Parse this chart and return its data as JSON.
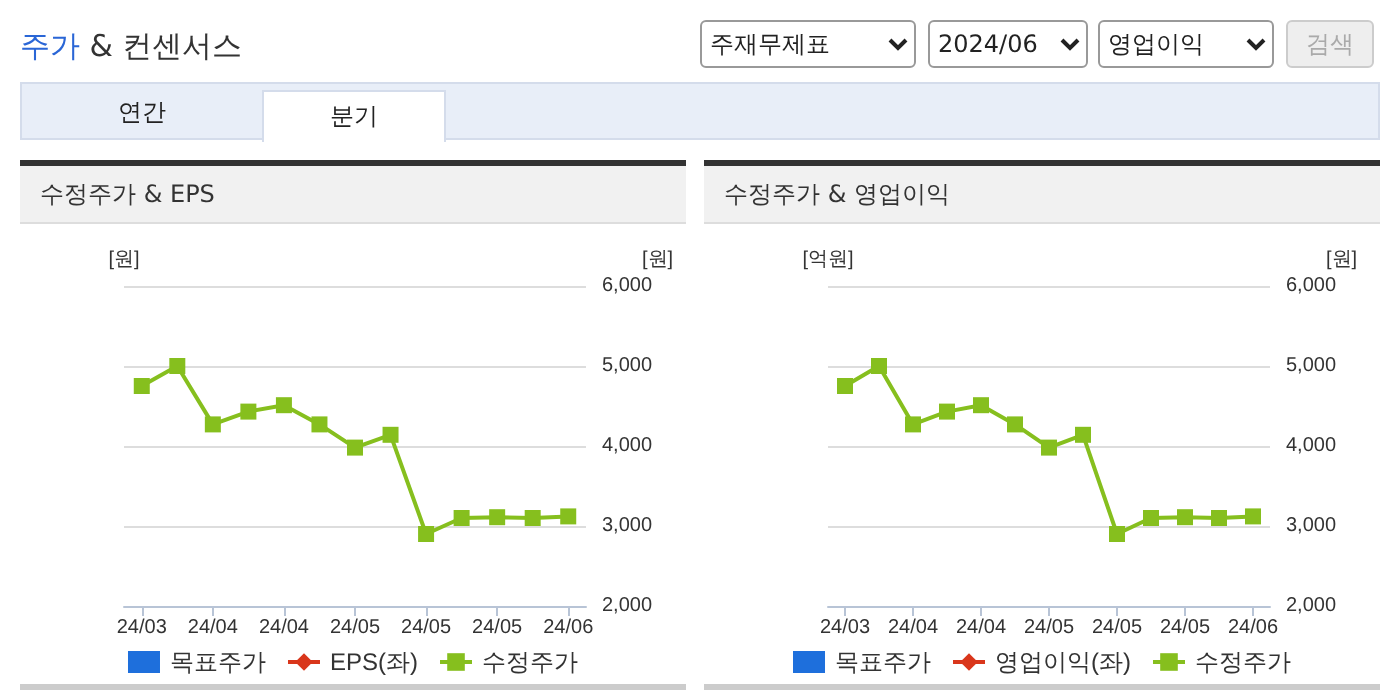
{
  "chart_data": [
    {
      "type": "other",
      "title": "주가 & 컨센서스",
      "annotations": [
        "주재무제표",
        "2024/06",
        "영업이익",
        "검색",
        "연간",
        "분기"
      ]
    },
    {
      "type": "line",
      "title": "수정주가 & EPS",
      "ylabel": "[원]",
      "y2label": "[원]",
      "categories": [
        "24/03",
        null,
        "24/04",
        null,
        "24/04",
        null,
        "24/05",
        null,
        "24/05",
        null,
        "24/05",
        null,
        "24/06"
      ],
      "series": [
        {
          "name": "목표주가",
          "type": "bar",
          "color": "#1e6fdc",
          "axis": "y2",
          "values": [
            null,
            null,
            null,
            null,
            null,
            null,
            null,
            null,
            null,
            null,
            null,
            null,
            null
          ]
        },
        {
          "name": "EPS(좌)",
          "type": "line",
          "marker": "diamond",
          "color": "#d9361b",
          "values": [
            null,
            null,
            null,
            null,
            null,
            null,
            null,
            null,
            null,
            null,
            null,
            null,
            null
          ]
        },
        {
          "name": "수정주가",
          "type": "line",
          "marker": "square",
          "color": "#86bf1e",
          "axis": "y2",
          "values": [
            4750,
            5000,
            4270,
            4430,
            4510,
            4270,
            3980,
            4140,
            2900,
            3100,
            3110,
            3100,
            3120
          ]
        }
      ],
      "y2lim": [
        2000,
        6000
      ],
      "y2ticks": [
        {
          "value": 2000,
          "label": "2,000"
        },
        {
          "value": 3000,
          "label": "3,000"
        },
        {
          "value": 4000,
          "label": "4,000"
        },
        {
          "value": 5000,
          "label": "5,000"
        },
        {
          "value": 6000,
          "label": "6,000"
        }
      ],
      "grid": "y",
      "legend": "bottom"
    },
    {
      "type": "line",
      "title": "수정주가 & 영업이익",
      "ylabel": "[억원]",
      "y2label": "[원]",
      "categories": [
        "24/03",
        null,
        "24/04",
        null,
        "24/04",
        null,
        "24/05",
        null,
        "24/05",
        null,
        "24/05",
        null,
        "24/06"
      ],
      "series": [
        {
          "name": "목표주가",
          "type": "bar",
          "color": "#1e6fdc",
          "axis": "y2",
          "values": [
            null,
            null,
            null,
            null,
            null,
            null,
            null,
            null,
            null,
            null,
            null,
            null,
            null
          ]
        },
        {
          "name": "영업이익(좌)",
          "type": "line",
          "marker": "diamond",
          "color": "#d9361b",
          "values": [
            null,
            null,
            null,
            null,
            null,
            null,
            null,
            null,
            null,
            null,
            null,
            null,
            null
          ]
        },
        {
          "name": "수정주가",
          "type": "line",
          "marker": "square",
          "color": "#86bf1e",
          "axis": "y2",
          "values": [
            4750,
            5000,
            4270,
            4430,
            4510,
            4270,
            3980,
            4140,
            2900,
            3100,
            3110,
            3100,
            3120
          ]
        }
      ],
      "y2lim": [
        2000,
        6000
      ],
      "y2ticks": [
        {
          "value": 2000,
          "label": "2,000"
        },
        {
          "value": 3000,
          "label": "3,000"
        },
        {
          "value": 4000,
          "label": "4,000"
        },
        {
          "value": 5000,
          "label": "5,000"
        },
        {
          "value": 6000,
          "label": "6,000"
        }
      ],
      "grid": "y",
      "legend": "bottom"
    }
  ]
}
